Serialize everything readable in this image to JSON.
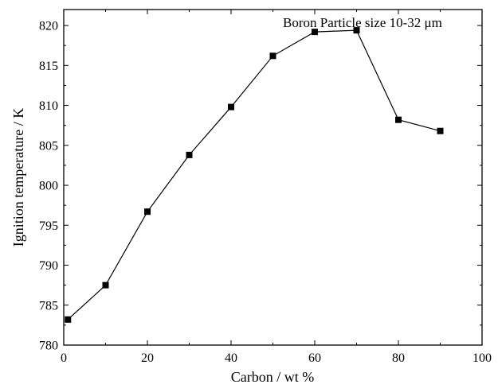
{
  "chart_data": {
    "type": "line",
    "title": "",
    "annotation": "Boron Particle size 10-32 μm",
    "xlabel": "Carbon / wt %",
    "ylabel": "Ignition temperature / K",
    "xlim": [
      0,
      100
    ],
    "ylim": [
      780,
      822
    ],
    "x_ticks": [
      0,
      20,
      40,
      60,
      80,
      100
    ],
    "y_ticks": [
      780,
      785,
      790,
      795,
      800,
      805,
      810,
      815,
      820
    ],
    "grid": false,
    "legend": "none",
    "marker": "square",
    "line_color": "#000000",
    "marker_color": "#000000",
    "series": [
      {
        "x": [
          1,
          10,
          20,
          30,
          40,
          50,
          60,
          70,
          80,
          90
        ],
        "y": [
          783.2,
          787.5,
          796.7,
          803.8,
          809.8,
          816.2,
          819.2,
          819.4,
          808.2,
          806.8
        ]
      }
    ]
  }
}
